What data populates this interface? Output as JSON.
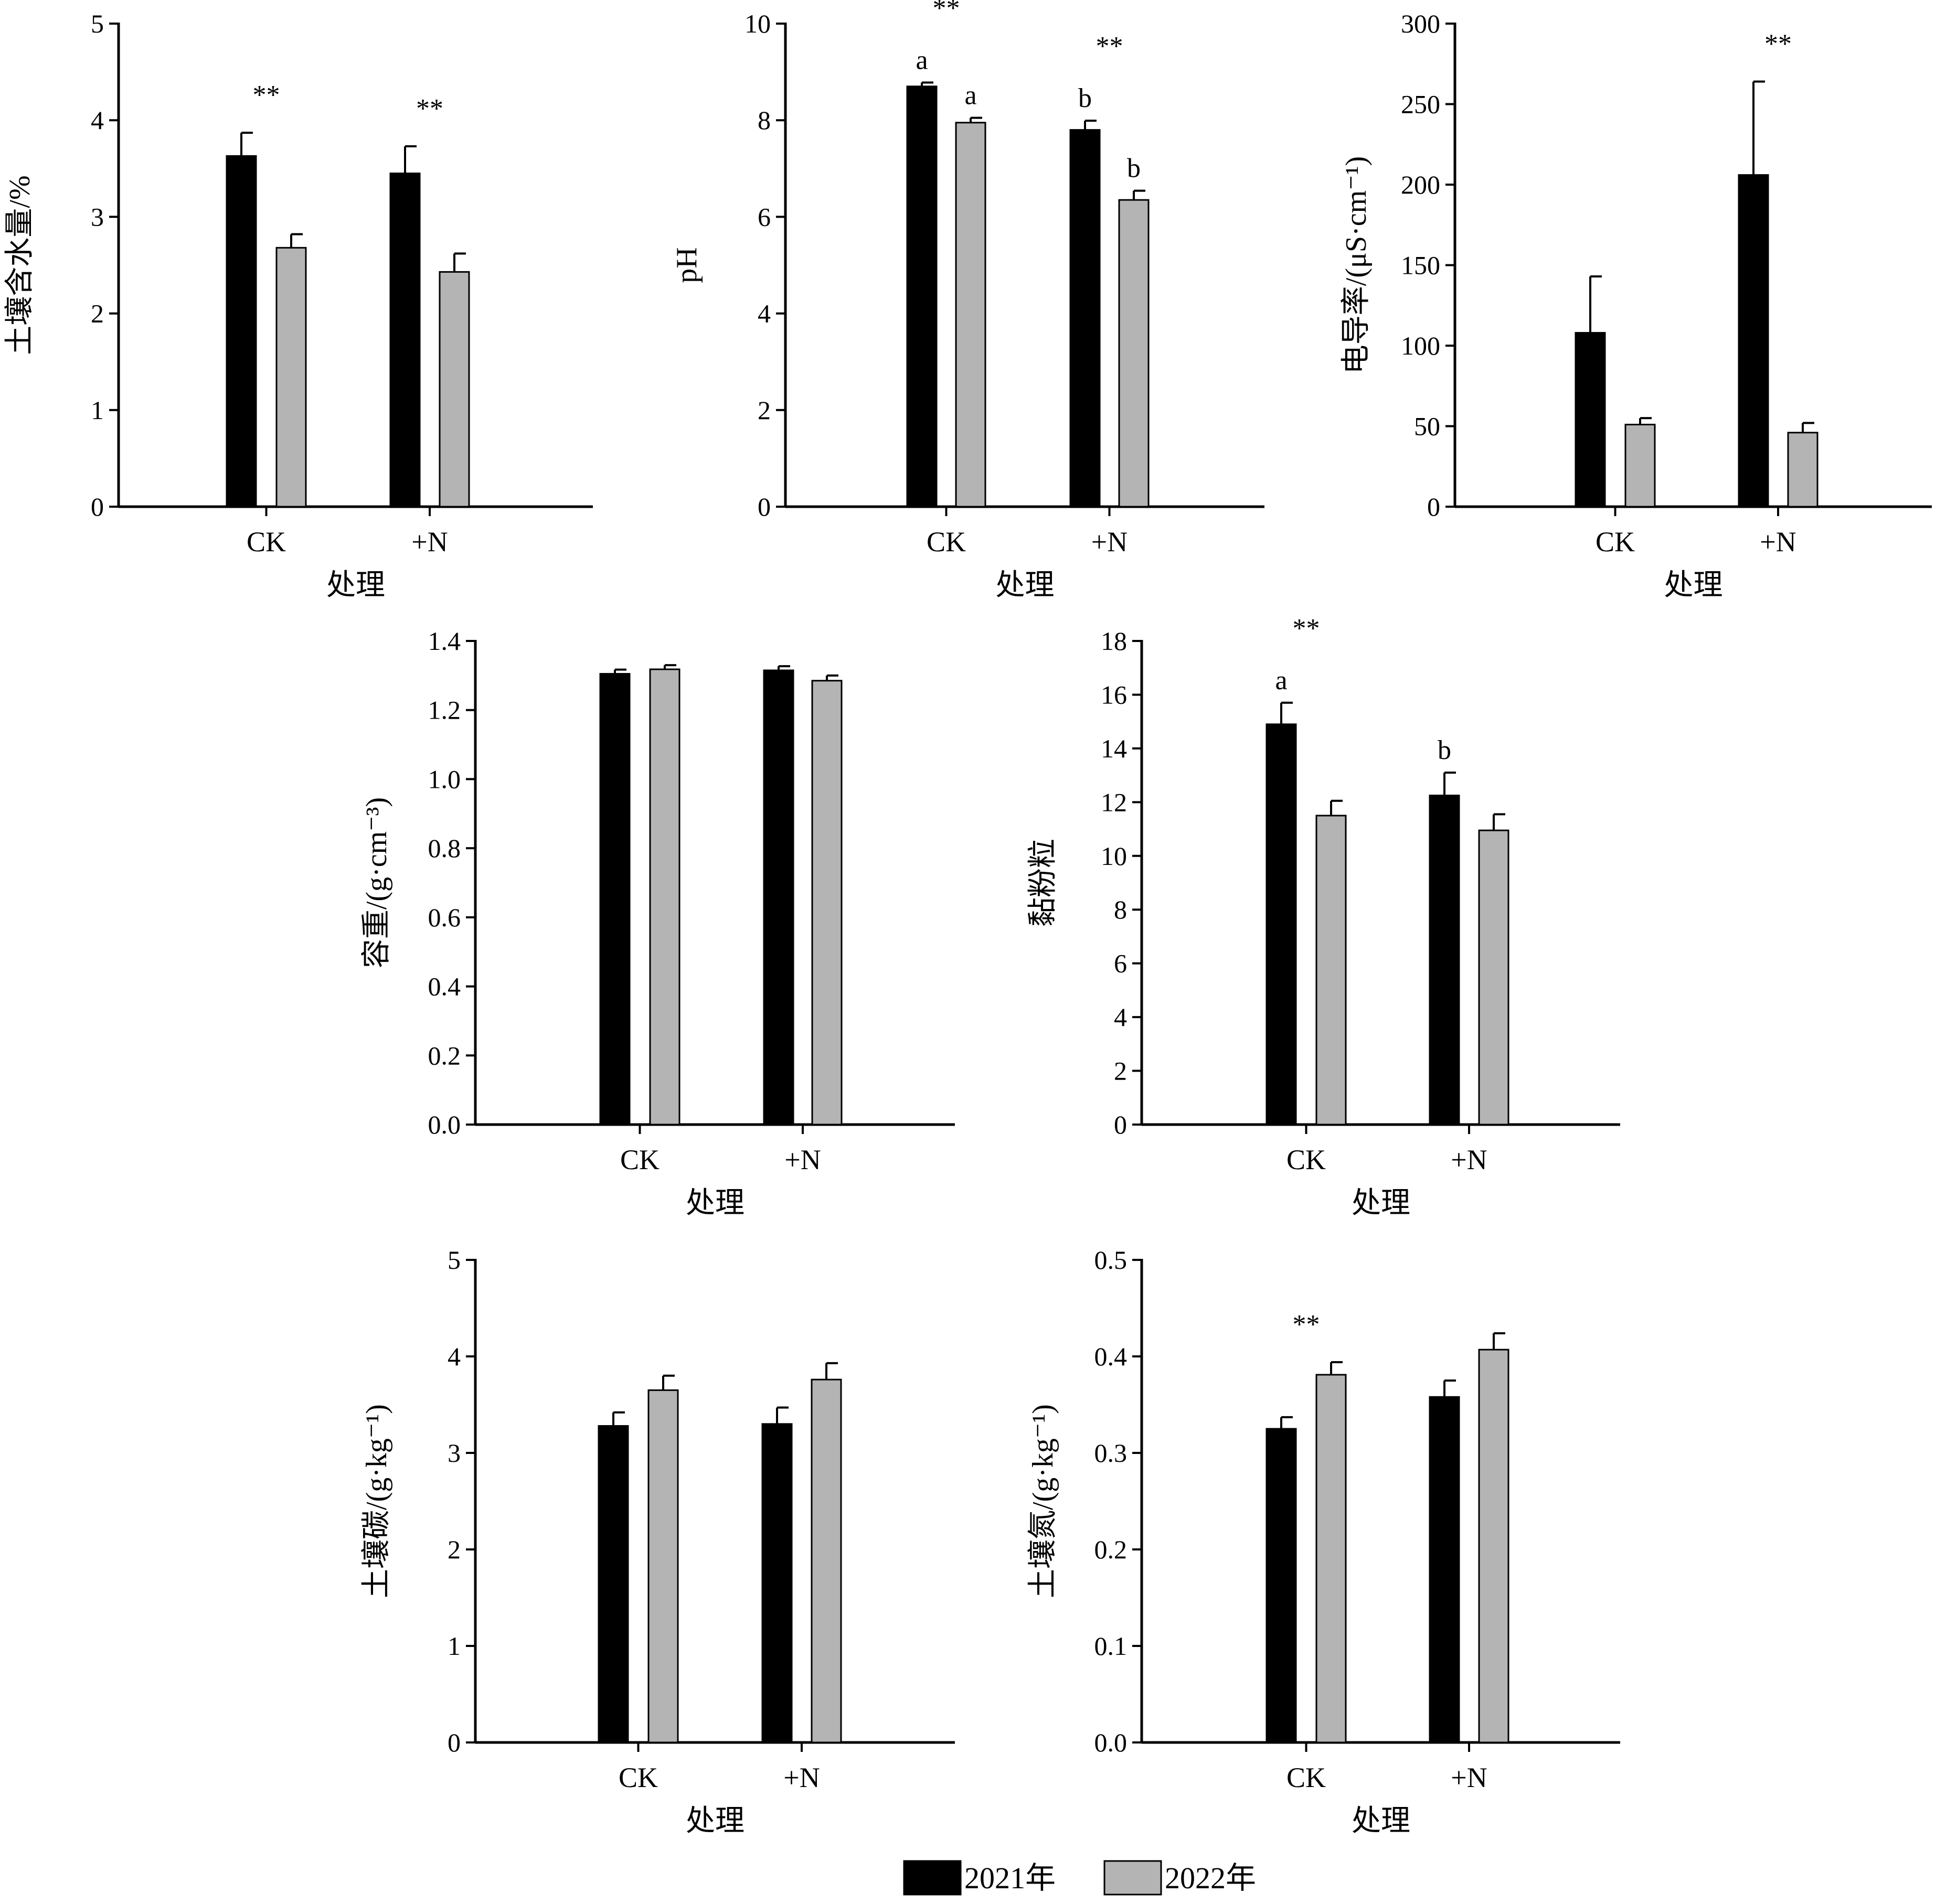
{
  "colors": {
    "series_2021": "#000000",
    "series_2022": "#b4b4b4",
    "axis": "#000000"
  },
  "legend": {
    "items": [
      {
        "label": "2021年",
        "color": "#000000"
      },
      {
        "label": "2022年",
        "color": "#b4b4b4"
      }
    ]
  },
  "chart_data": [
    {
      "type": "bar",
      "title": "",
      "xlabel": "处理",
      "ylabel": "土壤含水量/%",
      "categories": [
        "CK",
        "+N"
      ],
      "ylim": [
        0,
        5
      ],
      "yticks": [
        "0",
        "1",
        "2",
        "3",
        "4",
        "5"
      ],
      "series": [
        {
          "name": "2021年",
          "values": [
            3.63,
            3.45
          ],
          "errors": [
            0.24,
            0.28
          ],
          "letters": [
            "",
            ""
          ]
        },
        {
          "name": "2022年",
          "values": [
            2.68,
            2.43
          ],
          "errors": [
            0.14,
            0.19
          ],
          "letters": [
            "",
            ""
          ]
        }
      ],
      "significance": [
        "**",
        "**"
      ]
    },
    {
      "type": "bar",
      "title": "",
      "xlabel": "处理",
      "ylabel": "pH",
      "categories": [
        "CK",
        "+N"
      ],
      "ylim": [
        0,
        10
      ],
      "yticks": [
        "0",
        "2",
        "4",
        "6",
        "8",
        "10"
      ],
      "series": [
        {
          "name": "2021年",
          "values": [
            8.7,
            7.8
          ],
          "errors": [
            0.08,
            0.19
          ],
          "letters": [
            "a",
            "b"
          ]
        },
        {
          "name": "2022年",
          "values": [
            7.95,
            6.35
          ],
          "errors": [
            0.1,
            0.19
          ],
          "letters": [
            "a",
            "b"
          ]
        }
      ],
      "significance": [
        "**",
        "**"
      ]
    },
    {
      "type": "bar",
      "title": "",
      "xlabel": "处理",
      "ylabel": "电导率/(μS·cm⁻¹)",
      "categories": [
        "CK",
        "+N"
      ],
      "ylim": [
        0,
        300
      ],
      "yticks": [
        "0",
        "50",
        "100",
        "150",
        "200",
        "250",
        "300"
      ],
      "series": [
        {
          "name": "2021年",
          "values": [
            108,
            206
          ],
          "errors": [
            35,
            58
          ],
          "letters": [
            "",
            ""
          ]
        },
        {
          "name": "2022年",
          "values": [
            51,
            46
          ],
          "errors": [
            4,
            6
          ],
          "letters": [
            "",
            ""
          ]
        }
      ],
      "significance": [
        "",
        "**"
      ]
    },
    {
      "type": "bar",
      "title": "",
      "xlabel": "处理",
      "ylabel": "容重/(g·cm⁻³)",
      "categories": [
        "CK",
        "+N"
      ],
      "ylim": [
        0,
        1.4
      ],
      "yticks": [
        "0.0",
        "0.2",
        "0.4",
        "0.6",
        "0.8",
        "1.0",
        "1.2",
        "1.4"
      ],
      "series": [
        {
          "name": "2021年",
          "values": [
            1.305,
            1.315
          ],
          "errors": [
            0.012,
            0.012
          ],
          "letters": [
            "",
            ""
          ]
        },
        {
          "name": "2022年",
          "values": [
            1.318,
            1.285
          ],
          "errors": [
            0.012,
            0.015
          ],
          "letters": [
            "",
            ""
          ]
        }
      ],
      "significance": [
        "",
        ""
      ]
    },
    {
      "type": "bar",
      "title": "",
      "xlabel": "处理",
      "ylabel": "黏粉粒",
      "categories": [
        "CK",
        "+N"
      ],
      "ylim": [
        0,
        18
      ],
      "yticks": [
        "0",
        "2",
        "4",
        "6",
        "8",
        "10",
        "12",
        "14",
        "16",
        "18"
      ],
      "series": [
        {
          "name": "2021年",
          "values": [
            14.9,
            12.25
          ],
          "errors": [
            0.8,
            0.85
          ],
          "letters": [
            "a",
            "b"
          ]
        },
        {
          "name": "2022年",
          "values": [
            11.5,
            10.95
          ],
          "errors": [
            0.55,
            0.6
          ],
          "letters": [
            "",
            ""
          ]
        }
      ],
      "significance": [
        "**",
        ""
      ]
    },
    {
      "type": "bar",
      "title": "",
      "xlabel": "处理",
      "ylabel": "土壤碳/(g·kg⁻¹)",
      "categories": [
        "CK",
        "+N"
      ],
      "ylim": [
        0,
        5
      ],
      "yticks": [
        "0",
        "1",
        "2",
        "3",
        "4",
        "5"
      ],
      "series": [
        {
          "name": "2021年",
          "values": [
            3.28,
            3.3
          ],
          "errors": [
            0.14,
            0.17
          ],
          "letters": [
            "",
            ""
          ]
        },
        {
          "name": "2022年",
          "values": [
            3.65,
            3.76
          ],
          "errors": [
            0.15,
            0.17
          ],
          "letters": [
            "",
            ""
          ]
        }
      ],
      "significance": [
        "",
        ""
      ]
    },
    {
      "type": "bar",
      "title": "",
      "xlabel": "处理",
      "ylabel": "土壤氮/(g·kg⁻¹)",
      "categories": [
        "CK",
        "+N"
      ],
      "ylim": [
        0,
        0.5
      ],
      "yticks": [
        "0.0",
        "0.1",
        "0.2",
        "0.3",
        "0.4",
        "0.5"
      ],
      "series": [
        {
          "name": "2021年",
          "values": [
            0.325,
            0.358
          ],
          "errors": [
            0.012,
            0.017
          ],
          "letters": [
            "",
            ""
          ]
        },
        {
          "name": "2022年",
          "values": [
            0.381,
            0.407
          ],
          "errors": [
            0.013,
            0.017
          ],
          "letters": [
            "",
            ""
          ]
        }
      ],
      "significance": [
        "**",
        ""
      ]
    }
  ]
}
